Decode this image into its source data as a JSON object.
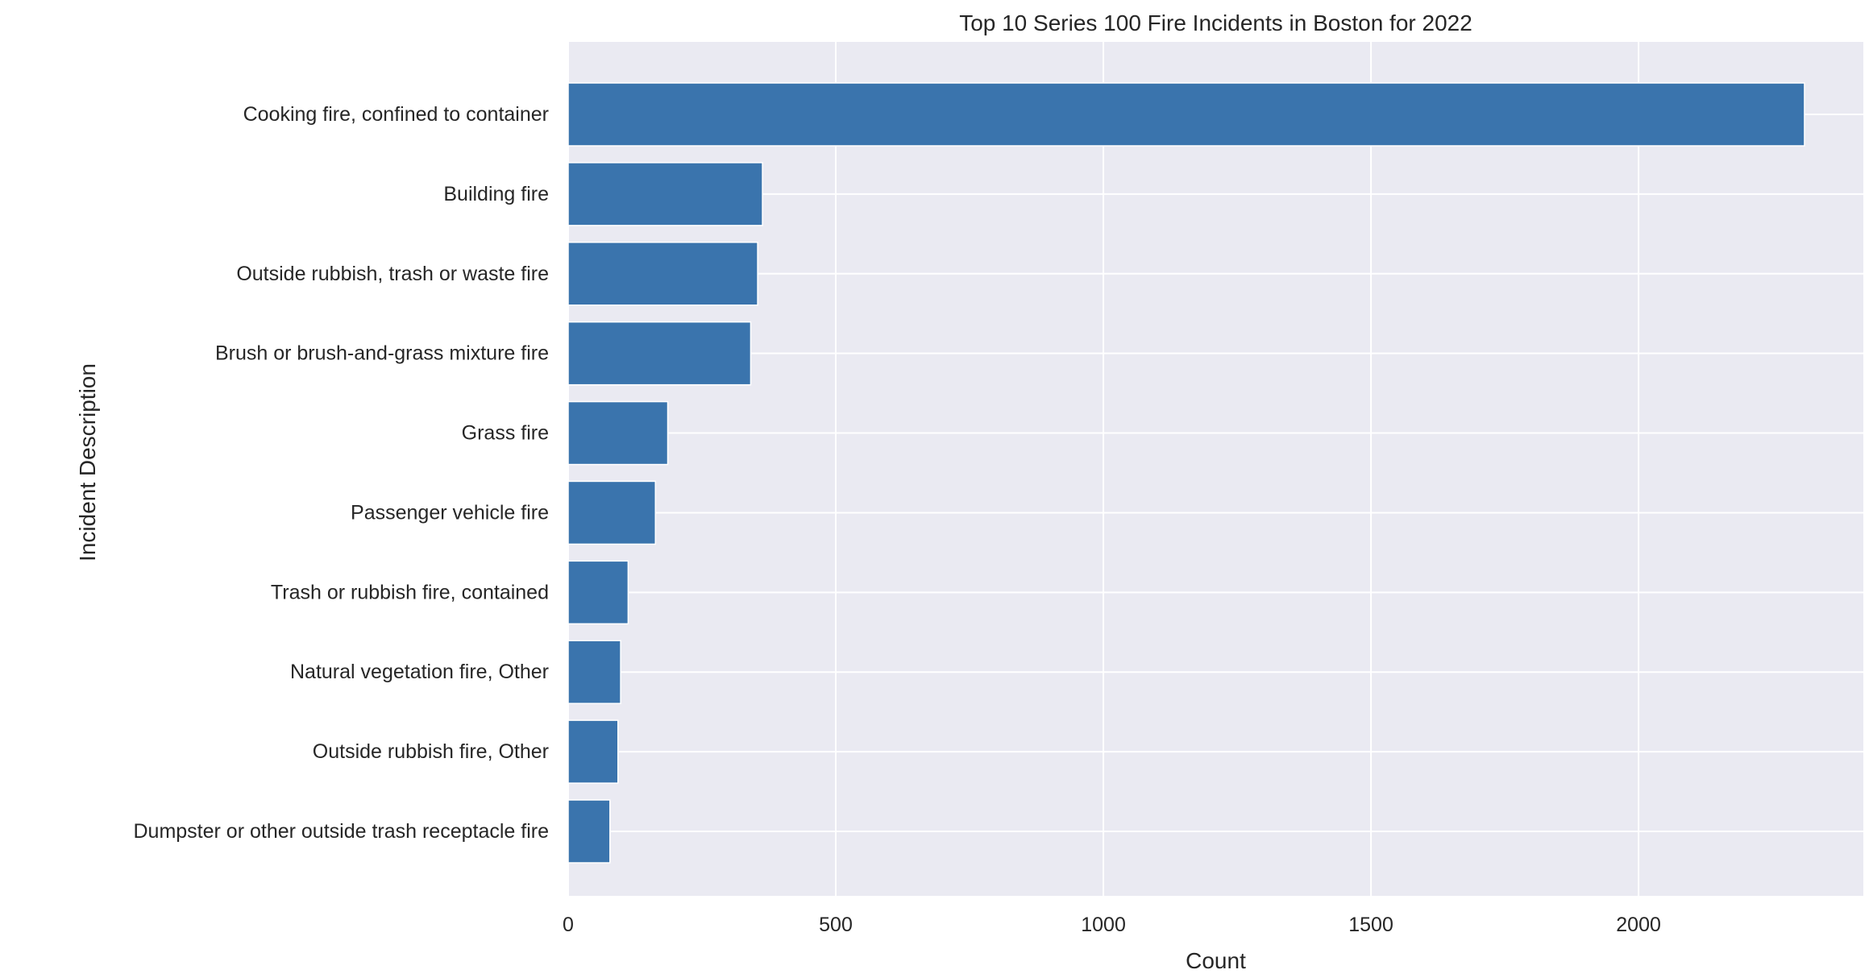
{
  "chart_data": {
    "type": "bar",
    "orientation": "horizontal",
    "title": "Top 10 Series 100 Fire Incidents in Boston for 2022",
    "xlabel": "Count",
    "ylabel": "Incident Description",
    "categories": [
      "Cooking fire, confined to container",
      "Building fire",
      "Outside rubbish, trash or waste fire",
      "Brush or brush-and-grass mixture fire",
      "Grass fire",
      "Passenger vehicle fire",
      "Trash or rubbish fire, contained",
      "Natural vegetation fire, Other",
      "Outside rubbish fire, Other",
      "Dumpster or other outside trash receptacle fire"
    ],
    "values": [
      2310,
      363,
      354,
      341,
      186,
      163,
      112,
      98,
      93,
      78
    ],
    "xlim": [
      0,
      2420
    ],
    "xticks": [
      0,
      500,
      1000,
      1500,
      2000
    ],
    "grid": true,
    "bar_color": "#3a74ad",
    "background_color": "#eaeaf2",
    "grid_color": "#ffffff"
  }
}
